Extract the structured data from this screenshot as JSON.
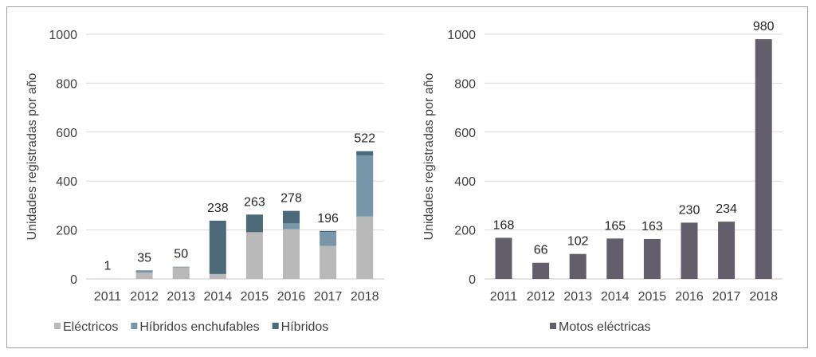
{
  "chart_data": [
    {
      "type": "bar",
      "stacked": true,
      "categories": [
        "2011",
        "2012",
        "2013",
        "2014",
        "2015",
        "2016",
        "2017",
        "2018"
      ],
      "series": [
        {
          "name": "Eléctricos",
          "values": [
            1,
            26,
            47,
            20,
            191,
            203,
            135,
            255
          ],
          "color": "#b9b9b9"
        },
        {
          "name": "Híbridos enchufables",
          "values": [
            0,
            8,
            3,
            0,
            0,
            24,
            57,
            250
          ],
          "color": "#7796aa"
        },
        {
          "name": "Híbridos",
          "values": [
            0,
            1,
            0,
            218,
            72,
            51,
            4,
            17
          ],
          "color": "#4b6979"
        }
      ],
      "totals": [
        1,
        35,
        50,
        238,
        263,
        278,
        196,
        522
      ],
      "ylabel": "Unidades registradas por año",
      "ylim": [
        0,
        1000
      ],
      "yticks": [
        0,
        200,
        400,
        600,
        800,
        1000
      ],
      "grid": true,
      "legend": "bottom"
    },
    {
      "type": "bar",
      "categories": [
        "2011",
        "2012",
        "2013",
        "2014",
        "2015",
        "2016",
        "2017",
        "2018"
      ],
      "series": [
        {
          "name": "Motos eléctricas",
          "values": [
            168,
            66,
            102,
            165,
            163,
            230,
            234,
            980
          ],
          "color": "#635e6b"
        }
      ],
      "ylabel": "Unidades registradas por año",
      "ylim": [
        0,
        1000
      ],
      "yticks": [
        0,
        200,
        400,
        600,
        800,
        1000
      ],
      "grid": true,
      "legend": "bottom"
    }
  ]
}
